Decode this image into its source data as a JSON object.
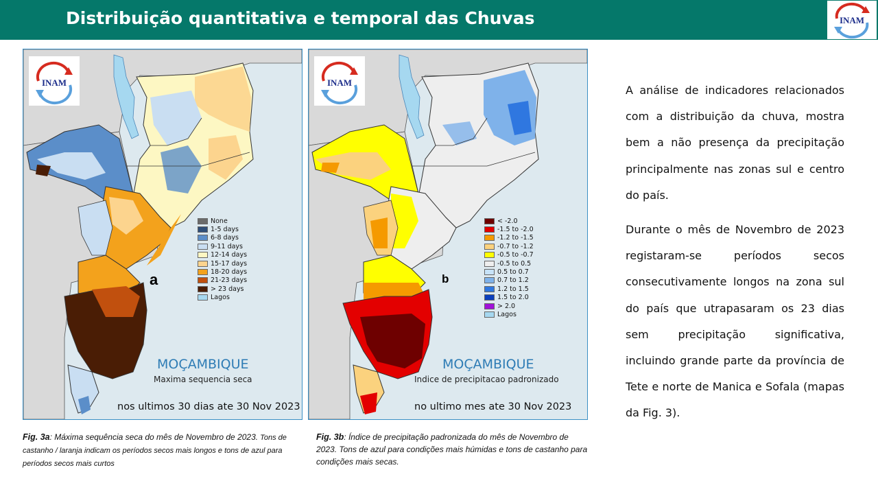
{
  "header": {
    "title": "Distribuição quantitativa e temporal das Chuvas",
    "logo_text": "INAM"
  },
  "map_a": {
    "logo_text": "INAM",
    "panel_letter": "a",
    "country": "MOÇAMBIQUE",
    "subtitle": "Maxima sequencia seca",
    "period": "nos ultimos 30 dias ate 30 Nov 2023",
    "legend": [
      {
        "label": "None",
        "color": "#6b6b6b"
      },
      {
        "label": "1-5 days",
        "color": "#2f4e78"
      },
      {
        "label": "6-8 days",
        "color": "#5b8ec9"
      },
      {
        "label": "9-11 days",
        "color": "#c9def2"
      },
      {
        "label": "12-14 days",
        "color": "#fdf7c3"
      },
      {
        "label": "15-17 days",
        "color": "#fcd48e"
      },
      {
        "label": "18-20 days",
        "color": "#f3a21c"
      },
      {
        "label": "21-23 days",
        "color": "#c1500e"
      },
      {
        "label": "> 23 days",
        "color": "#4a1d05"
      },
      {
        "label": "Lagos",
        "color": "#a6d8f0"
      }
    ]
  },
  "map_b": {
    "logo_text": "INAM",
    "panel_letter": "b",
    "country": "MOÇAMBIQUE",
    "subtitle": "Indice de precipitacao padronizado",
    "period": "no ultimo mes ate 30 Nov 2023",
    "legend": [
      {
        "label": "< -2.0",
        "color": "#6e0000"
      },
      {
        "label": "-1.5 to -2.0",
        "color": "#e30000"
      },
      {
        "label": "-1.2 to -1.5",
        "color": "#f59a00"
      },
      {
        "label": "-0.7 to -1.2",
        "color": "#fbd27e"
      },
      {
        "label": "-0.5 to -0.7",
        "color": "#ffff00"
      },
      {
        "label": "-0.5 to 0.5",
        "color": "#eeeeee"
      },
      {
        "label": "0.5 to 0.7",
        "color": "#c7e3f8"
      },
      {
        "label": "0.7 to 1.2",
        "color": "#7fb2ea"
      },
      {
        "label": "1.2 to 1.5",
        "color": "#2f77e0"
      },
      {
        "label": "1.5 to 2.0",
        "color": "#0a3fbd"
      },
      {
        "label": "> 2.0",
        "color": "#a112d9"
      },
      {
        "label": "Lagos",
        "color": "#a6d8f0"
      }
    ]
  },
  "captions": {
    "a_fig": "Fig. 3a",
    "a_text": ": Máxima sequência seca do mês de Novembro de 2023.",
    "a_rest": " Tons de castanho / laranja indicam os períodos secos mais longos e tons de azul para períodos secos mais curtos",
    "b_fig": "Fig. 3b",
    "b_text": ": Índice de precipitação padronizada do mês de Novembro de 2023. Tons de azul para condições mais húmidas e tons de castanho para condições mais secas."
  },
  "body": {
    "paragraph1": "A análise de indicadores relacionados com a distribuição da chuva, mostra bem a não presença da precipitação principalmente nas zonas sul e centro do país.",
    "paragraph2": "Durante o mês de Novembro de 2023 registaram-se períodos secos consecutivamente longos na zona sul do país que utrapasaram os 23 dias sem precipitação significativa, incluindo grande parte da província de Tete e norte de Manica e Sofala (mapas da Fig. 3)."
  }
}
